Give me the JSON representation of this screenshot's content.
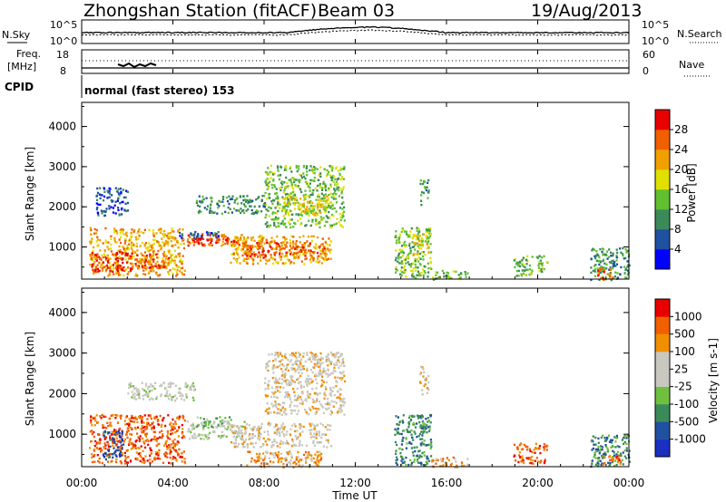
{
  "header": {
    "station": "Zhongshan Station (fitACF)",
    "beam": "Beam 03",
    "date": "19/Aug/2013"
  },
  "noise_panel": {
    "left_label": "N.Sky",
    "left_ticks": [
      "10^5",
      "10^0"
    ],
    "right_ticks": [
      "10^5",
      "10^0"
    ],
    "right_label": "N.Search"
  },
  "freq_panel": {
    "left_label_1": "Freq.",
    "left_label_2": "[MHz]",
    "left_ticks": [
      "18",
      "8"
    ],
    "right_ticks": [
      "60",
      "0"
    ],
    "right_label": "Nave"
  },
  "cpid": {
    "label": "CPID",
    "value": "normal (fast stereo) 153"
  },
  "colors": {
    "power": [
      "#0000ff",
      "#2050a0",
      "#3a8a5a",
      "#60c030",
      "#e0e000",
      "#f0a000",
      "#f06000",
      "#e80000"
    ],
    "velocity": [
      "#e80000",
      "#f06000",
      "#f09000",
      "#c8c8c0",
      "#c8c8c0",
      "#70c040",
      "#3a8a5a",
      "#2050a0",
      "#1a30c0"
    ]
  },
  "chart_data": [
    {
      "type": "heatmap",
      "name": "power",
      "ylabel": "Slant Range [km]",
      "y_ticks": [
        "1000",
        "2000",
        "3000",
        "4000"
      ],
      "ylim": [
        200,
        4600
      ],
      "xlim": [
        0,
        24
      ],
      "colorbar_label": "Power [dB]",
      "colorbar_ticks": [
        "4",
        "8",
        "12",
        "16",
        "20",
        "24",
        "28"
      ],
      "colorbar_range": [
        0,
        32
      ],
      "regions": [
        {
          "t0": 0.3,
          "t1": 4.5,
          "r0": 300,
          "r1": 1500,
          "level": 5
        },
        {
          "t0": 0.4,
          "t1": 2.2,
          "r0": 400,
          "r1": 900,
          "level": 7
        },
        {
          "t0": 2.2,
          "t1": 3.8,
          "r0": 500,
          "r1": 850,
          "level": 6
        },
        {
          "t0": 4.6,
          "t1": 7.2,
          "r0": 1050,
          "r1": 1350,
          "level": 6
        },
        {
          "t0": 5.0,
          "t1": 6.8,
          "r0": 1100,
          "r1": 1250,
          "level": 7
        },
        {
          "t0": 6.5,
          "t1": 10.9,
          "r0": 600,
          "r1": 1300,
          "level": 5
        },
        {
          "t0": 7.0,
          "t1": 10.8,
          "r0": 750,
          "r1": 1150,
          "level": 6
        },
        {
          "t0": 8.0,
          "t1": 11.5,
          "r0": 1500,
          "r1": 3050,
          "level": 3
        },
        {
          "t0": 8.5,
          "t1": 10.8,
          "r0": 1800,
          "r1": 2300,
          "level": 4
        },
        {
          "t0": 5.0,
          "t1": 8.0,
          "r0": 1850,
          "r1": 2300,
          "level": 2
        },
        {
          "t0": 4.0,
          "t1": 6.0,
          "r0": 1250,
          "r1": 1400,
          "level": 1
        },
        {
          "t0": 0.6,
          "t1": 2.0,
          "r0": 1800,
          "r1": 2500,
          "level": 1
        },
        {
          "t0": 13.7,
          "t1": 15.3,
          "r0": 250,
          "r1": 1500,
          "level": 3
        },
        {
          "t0": 14.5,
          "t1": 15.2,
          "r0": 800,
          "r1": 1350,
          "level": 4
        },
        {
          "t0": 14.8,
          "t1": 15.2,
          "r0": 2000,
          "r1": 2700,
          "level": 2
        },
        {
          "t0": 15.3,
          "t1": 16.9,
          "r0": 200,
          "r1": 450,
          "level": 3
        },
        {
          "t0": 18.9,
          "t1": 20.4,
          "r0": 300,
          "r1": 800,
          "level": 3
        },
        {
          "t0": 22.3,
          "t1": 24.0,
          "r0": 200,
          "r1": 1000,
          "level": 2
        },
        {
          "t0": 22.6,
          "t1": 23.4,
          "r0": 200,
          "r1": 500,
          "level": 6
        }
      ]
    },
    {
      "type": "heatmap",
      "name": "velocity",
      "ylabel": "Slant Range [km]",
      "y_ticks": [
        "1000",
        "2000",
        "3000",
        "4000"
      ],
      "ylim": [
        200,
        4600
      ],
      "xlim": [
        0,
        24
      ],
      "colorbar_label": "Velocity [m s-1]",
      "colorbar_ticks": [
        "1000",
        "500",
        "100",
        "25",
        "-25",
        "-100",
        "-500",
        "-1000"
      ],
      "regions": [
        {
          "t0": 0.3,
          "t1": 4.5,
          "r0": 300,
          "r1": 1500,
          "level": 1
        },
        {
          "t0": 0.9,
          "t1": 1.8,
          "r0": 400,
          "r1": 1100,
          "level": 7
        },
        {
          "t0": 4.6,
          "t1": 7.2,
          "r0": 900,
          "r1": 1350,
          "level": 4
        },
        {
          "t0": 5.0,
          "t1": 6.6,
          "r0": 1200,
          "r1": 1450,
          "level": 5
        },
        {
          "t0": 6.5,
          "t1": 10.9,
          "r0": 700,
          "r1": 1300,
          "level": 3
        },
        {
          "t0": 8.0,
          "t1": 11.5,
          "r0": 1500,
          "r1": 3050,
          "level": 3
        },
        {
          "t0": 2.0,
          "t1": 5.0,
          "r0": 1850,
          "r1": 2300,
          "level": 4
        },
        {
          "t0": 7.2,
          "t1": 10.5,
          "r0": 200,
          "r1": 600,
          "level": 2
        },
        {
          "t0": 13.7,
          "t1": 15.3,
          "r0": 250,
          "r1": 1500,
          "level": 6
        },
        {
          "t0": 14.8,
          "t1": 15.2,
          "r0": 2000,
          "r1": 2700,
          "level": 3
        },
        {
          "t0": 15.3,
          "t1": 16.9,
          "r0": 200,
          "r1": 450,
          "level": 2
        },
        {
          "t0": 18.9,
          "t1": 20.4,
          "r0": 300,
          "r1": 800,
          "level": 1
        },
        {
          "t0": 22.3,
          "t1": 24.0,
          "r0": 200,
          "r1": 1000,
          "level": 6
        },
        {
          "t0": 22.8,
          "t1": 23.6,
          "r0": 250,
          "r1": 500,
          "level": 1
        }
      ]
    }
  ],
  "time_axis": {
    "ticks": [
      "00:00",
      "04:00",
      "08:00",
      "12:00",
      "16:00",
      "20:00",
      "00:00"
    ],
    "label": "Time UT"
  }
}
